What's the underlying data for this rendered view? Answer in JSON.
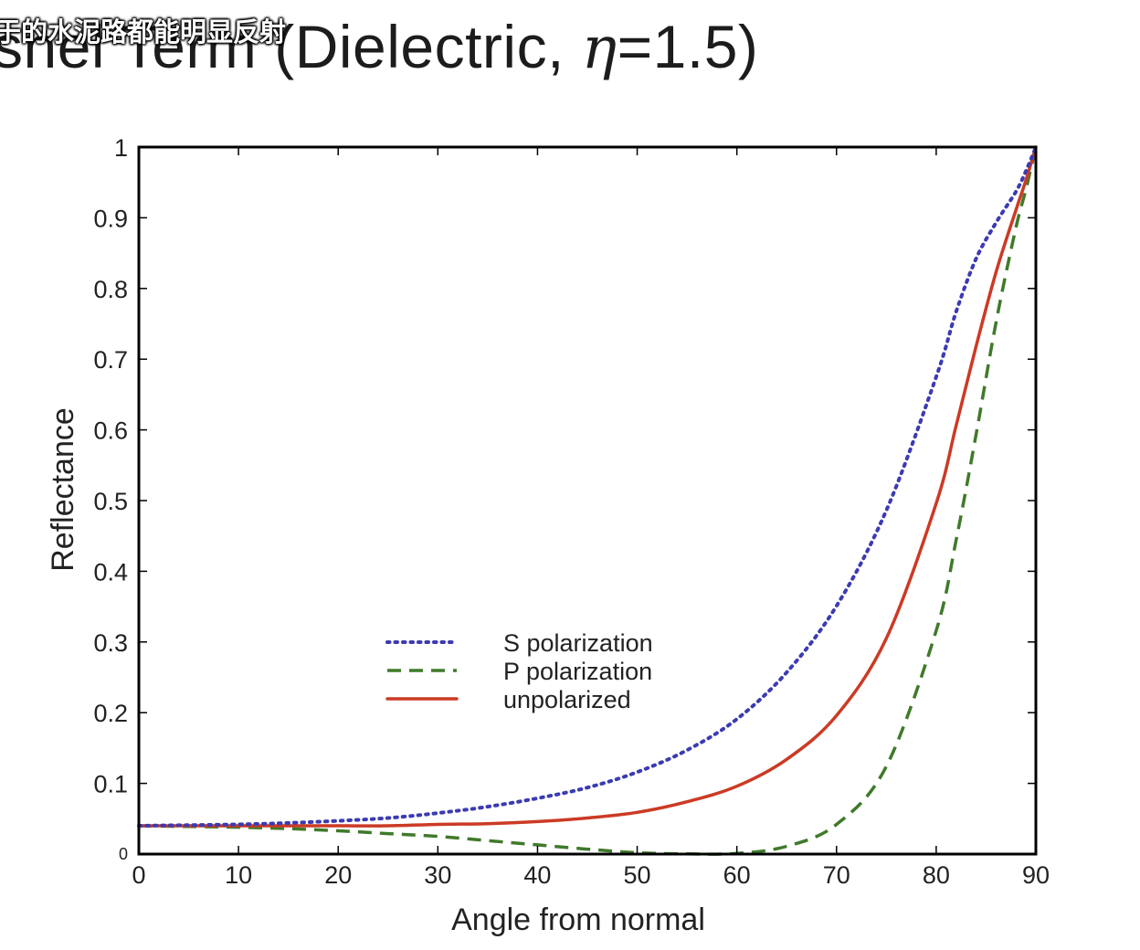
{
  "slide": {
    "title_main": "snel Term (Dielectric, ",
    "title_eta": "η",
    "title_tail": "=1.5)",
    "subtitle_overlay": "于的水泥路都能明显反射"
  },
  "colors": {
    "s_polarization": "#3b3bb3",
    "p_polarization": "#3f7a2a",
    "unpolarized": "#cc3a24",
    "axes": "#000000"
  },
  "chart_data": {
    "type": "line",
    "title": "",
    "xlabel": "Angle from normal",
    "ylabel": "Reflectance",
    "xlim": [
      0,
      90
    ],
    "ylim": [
      0,
      1
    ],
    "xticks": [
      "0",
      "10",
      "20",
      "30",
      "40",
      "50",
      "60",
      "70",
      "80",
      "90"
    ],
    "yticks": [
      "0",
      "0.1",
      "0.2",
      "0.3",
      "0.4",
      "0.5",
      "0.6",
      "0.7",
      "0.8",
      "0.9",
      "1"
    ],
    "grid": false,
    "legend_position": "center",
    "x": [
      0,
      5,
      10,
      15,
      20,
      25,
      30,
      35,
      40,
      45,
      50,
      55,
      60,
      65,
      70,
      75,
      80,
      82,
      84,
      86,
      88,
      89,
      90
    ],
    "series": [
      {
        "name": "S polarization",
        "style": "dotted",
        "values": [
          0.04,
          0.041,
          0.042,
          0.044,
          0.047,
          0.051,
          0.058,
          0.067,
          0.079,
          0.094,
          0.116,
          0.147,
          0.191,
          0.257,
          0.351,
          0.486,
          0.675,
          0.767,
          0.842,
          0.893,
          0.937,
          0.966,
          1.0
        ]
      },
      {
        "name": "P polarization",
        "style": "dashed",
        "values": [
          0.04,
          0.039,
          0.038,
          0.036,
          0.033,
          0.029,
          0.025,
          0.019,
          0.013,
          0.007,
          0.002,
          0.0002,
          0.001,
          0.011,
          0.042,
          0.124,
          0.316,
          0.444,
          0.593,
          0.752,
          0.886,
          0.94,
          1.0
        ]
      },
      {
        "name": "unpolarized",
        "style": "solid",
        "values": [
          0.04,
          0.04,
          0.04,
          0.04,
          0.04,
          0.04,
          0.042,
          0.043,
          0.046,
          0.051,
          0.059,
          0.074,
          0.096,
          0.134,
          0.196,
          0.305,
          0.496,
          0.606,
          0.718,
          0.823,
          0.911,
          0.953,
          1.0
        ]
      }
    ]
  }
}
